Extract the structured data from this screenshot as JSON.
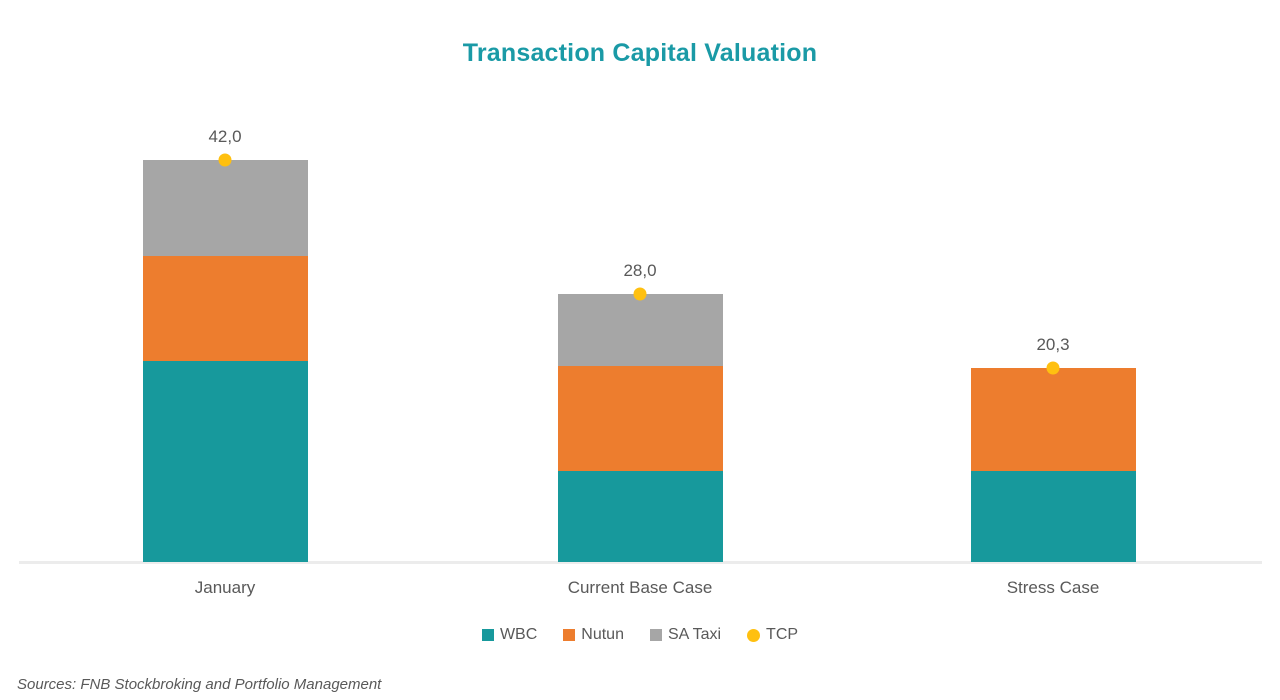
{
  "source": "Sources: FNB Stockbroking and Portfolio Management",
  "colors": {
    "title": "#1A9AA6",
    "wbc": "#17999C",
    "nutun": "#ED7D2E",
    "sa_taxi": "#A6A6A6",
    "tcp": "#FFC010",
    "text": "#595959",
    "axis": "#ECECEC"
  },
  "chart_data": {
    "type": "bar",
    "stacked": true,
    "title": "Transaction Capital Valuation",
    "categories": [
      "January",
      "Current Base Case",
      "Stress Case"
    ],
    "series": [
      {
        "name": "WBC",
        "role": "stack",
        "color_key": "wbc",
        "values": [
          21.0,
          9.5,
          9.5
        ]
      },
      {
        "name": "Nutun",
        "role": "stack",
        "color_key": "nutun",
        "values": [
          11.0,
          11.0,
          10.8
        ]
      },
      {
        "name": "SA Taxi",
        "role": "stack",
        "color_key": "sa_taxi",
        "values": [
          10.0,
          7.5,
          0
        ]
      },
      {
        "name": "TCP",
        "role": "marker",
        "color_key": "tcp",
        "values": [
          42.0,
          28.0,
          20.3
        ]
      }
    ],
    "totals_labels": [
      "42,0",
      "28,0",
      "20,3"
    ],
    "ylim": [
      0,
      44
    ],
    "grid": false,
    "legend": [
      "WBC",
      "Nutun",
      "SA Taxi",
      "TCP"
    ],
    "legend_position": "bottom",
    "xlabel": "",
    "ylabel": ""
  }
}
